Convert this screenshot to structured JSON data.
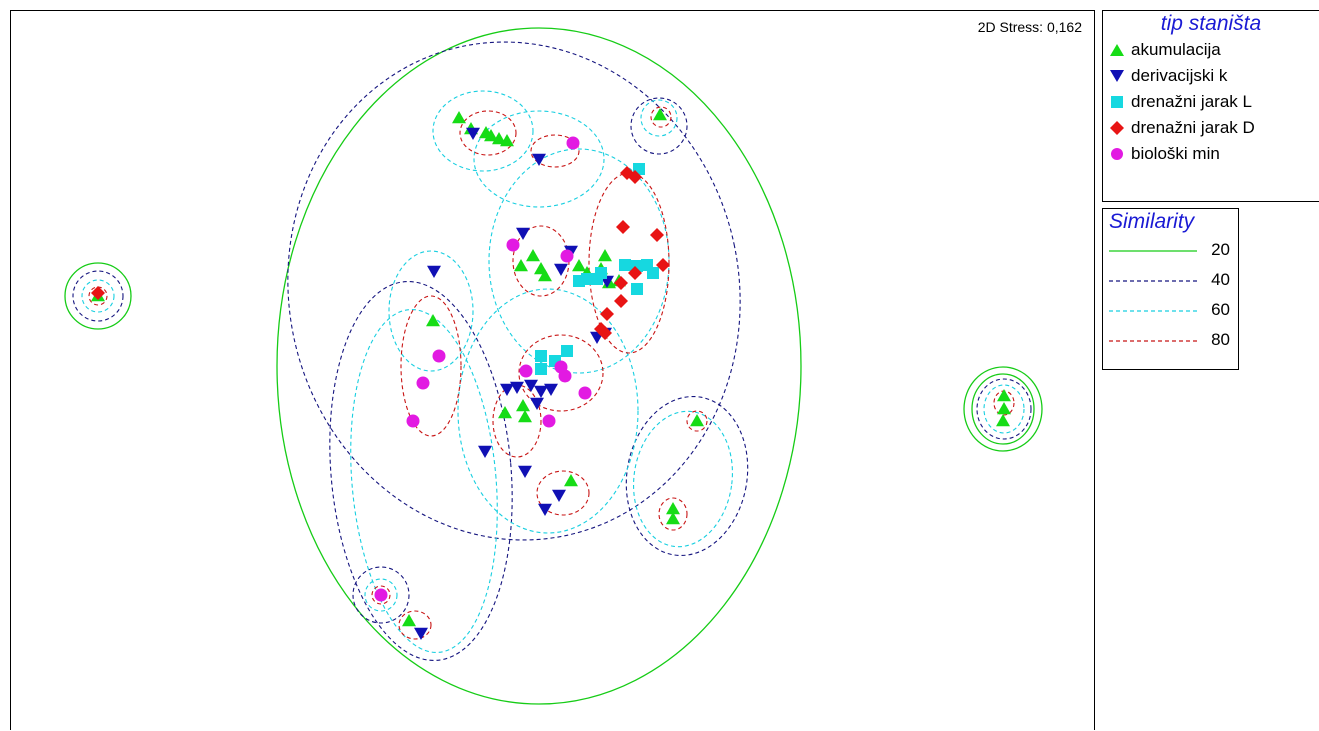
{
  "chart_data": {
    "type": "scatter",
    "title": "",
    "stress_text": "2D Stress: 0,162",
    "legend_title": "tip staništa",
    "similarity_title": "Similarity",
    "xlim": [
      0,
      1085
    ],
    "ylim": [
      0,
      720
    ],
    "series": [
      {
        "name": "akumulacija",
        "marker": "triangle-up",
        "color": "#16dc16",
        "points": [
          [
            448,
            107
          ],
          [
            460,
            118
          ],
          [
            475,
            122
          ],
          [
            480,
            125
          ],
          [
            488,
            128
          ],
          [
            496,
            130
          ],
          [
            649,
            104
          ],
          [
            522,
            245
          ],
          [
            510,
            255
          ],
          [
            530,
            258
          ],
          [
            534,
            265
          ],
          [
            568,
            255
          ],
          [
            576,
            262
          ],
          [
            590,
            258
          ],
          [
            598,
            272
          ],
          [
            594,
            245
          ],
          [
            608,
            270
          ],
          [
            422,
            310
          ],
          [
            494,
            402
          ],
          [
            512,
            395
          ],
          [
            514,
            406
          ],
          [
            560,
            470
          ],
          [
            686,
            410
          ],
          [
            662,
            498
          ],
          [
            662,
            508
          ],
          [
            398,
            610
          ],
          [
            993,
            385
          ],
          [
            993,
            398
          ],
          [
            992,
            410
          ],
          [
            87,
            285
          ]
        ]
      },
      {
        "name": "derivacijski k",
        "marker": "triangle-down",
        "color": "#1010b4",
        "points": [
          [
            462,
            122
          ],
          [
            528,
            148
          ],
          [
            512,
            222
          ],
          [
            560,
            240
          ],
          [
            550,
            258
          ],
          [
            596,
            270
          ],
          [
            423,
            260
          ],
          [
            586,
            326
          ],
          [
            594,
            322
          ],
          [
            496,
            378
          ],
          [
            506,
            376
          ],
          [
            520,
            374
          ],
          [
            530,
            380
          ],
          [
            540,
            378
          ],
          [
            526,
            392
          ],
          [
            474,
            440
          ],
          [
            514,
            460
          ],
          [
            534,
            498
          ],
          [
            548,
            484
          ],
          [
            410,
            622
          ]
        ]
      },
      {
        "name": "drenažni jarak L",
        "marker": "square",
        "color": "#16d8e0",
        "points": [
          [
            628,
            158
          ],
          [
            568,
            270
          ],
          [
            576,
            268
          ],
          [
            590,
            262
          ],
          [
            586,
            268
          ],
          [
            614,
            254
          ],
          [
            626,
            255
          ],
          [
            636,
            254
          ],
          [
            642,
            262
          ],
          [
            626,
            278
          ],
          [
            530,
            345
          ],
          [
            530,
            358
          ],
          [
            544,
            350
          ],
          [
            556,
            340
          ]
        ]
      },
      {
        "name": "drenažni jarak D",
        "marker": "diamond",
        "color": "#e81414",
        "points": [
          [
            616,
            162
          ],
          [
            624,
            166
          ],
          [
            612,
            216
          ],
          [
            646,
            224
          ],
          [
            610,
            272
          ],
          [
            624,
            262
          ],
          [
            652,
            254
          ],
          [
            610,
            290
          ],
          [
            596,
            303
          ],
          [
            590,
            318
          ],
          [
            594,
            322
          ],
          [
            87,
            282
          ]
        ]
      },
      {
        "name": "biološki min",
        "marker": "circle",
        "color": "#e21ae2",
        "points": [
          [
            562,
            132
          ],
          [
            502,
            234
          ],
          [
            556,
            245
          ],
          [
            428,
            345
          ],
          [
            412,
            372
          ],
          [
            402,
            410
          ],
          [
            515,
            360
          ],
          [
            550,
            356
          ],
          [
            554,
            365
          ],
          [
            574,
            382
          ],
          [
            538,
            410
          ],
          [
            370,
            584
          ]
        ]
      }
    ],
    "similarity": [
      {
        "label": "20",
        "color": "#16cc16",
        "dash": "solid"
      },
      {
        "label": "40",
        "color": "#15157f",
        "dash": "dashed"
      },
      {
        "label": "60",
        "color": "#18cfe0",
        "dash": "dashed"
      },
      {
        "label": "80",
        "color": "#c81414",
        "dash": "dashed"
      }
    ]
  },
  "contours": [
    {
      "level": "20",
      "cx": 528,
      "cy": 355,
      "rx": 262,
      "ry": 338
    },
    {
      "level": "20",
      "cx": 87,
      "cy": 285,
      "rx": 33,
      "ry": 33
    },
    {
      "level": "20",
      "cx": 992,
      "cy": 398,
      "rx": 39,
      "ry": 42
    },
    {
      "level": "20",
      "cx": 992,
      "cy": 398,
      "rx": 31,
      "ry": 35
    },
    {
      "level": "40",
      "cx": 503,
      "cy": 280,
      "rx": 225,
      "ry": 250,
      "rot": -12
    },
    {
      "level": "40",
      "cx": 410,
      "cy": 460,
      "rx": 90,
      "ry": 190,
      "rot": -5
    },
    {
      "level": "40",
      "cx": 648,
      "cy": 115,
      "rx": 28,
      "ry": 28
    },
    {
      "level": "40",
      "cx": 87,
      "cy": 285,
      "rx": 25,
      "ry": 25
    },
    {
      "level": "40",
      "cx": 676,
      "cy": 465,
      "rx": 60,
      "ry": 80,
      "rot": 10
    },
    {
      "level": "40",
      "cx": 370,
      "cy": 584,
      "rx": 28,
      "ry": 28
    },
    {
      "level": "40",
      "cx": 993,
      "cy": 398,
      "rx": 27,
      "ry": 30
    },
    {
      "level": "60",
      "cx": 472,
      "cy": 120,
      "rx": 50,
      "ry": 40
    },
    {
      "level": "60",
      "cx": 528,
      "cy": 148,
      "rx": 65,
      "ry": 48
    },
    {
      "level": "60",
      "cx": 568,
      "cy": 250,
      "rx": 90,
      "ry": 112
    },
    {
      "level": "60",
      "cx": 537,
      "cy": 400,
      "rx": 90,
      "ry": 122
    },
    {
      "level": "60",
      "cx": 420,
      "cy": 300,
      "rx": 42,
      "ry": 60
    },
    {
      "level": "60",
      "cx": 413,
      "cy": 470,
      "rx": 72,
      "ry": 172,
      "rot": -5
    },
    {
      "level": "60",
      "cx": 648,
      "cy": 107,
      "rx": 18,
      "ry": 18
    },
    {
      "level": "60",
      "cx": 87,
      "cy": 285,
      "rx": 16,
      "ry": 16
    },
    {
      "level": "60",
      "cx": 672,
      "cy": 468,
      "rx": 49,
      "ry": 68,
      "rot": 8
    },
    {
      "level": "60",
      "cx": 370,
      "cy": 584,
      "rx": 16,
      "ry": 16
    },
    {
      "level": "60",
      "cx": 993,
      "cy": 398,
      "rx": 20,
      "ry": 24
    },
    {
      "level": "80",
      "cx": 477,
      "cy": 122,
      "rx": 28,
      "ry": 22
    },
    {
      "level": "80",
      "cx": 544,
      "cy": 140,
      "rx": 24,
      "ry": 16
    },
    {
      "level": "80",
      "cx": 530,
      "cy": 250,
      "rx": 28,
      "ry": 35
    },
    {
      "level": "80",
      "cx": 618,
      "cy": 252,
      "rx": 40,
      "ry": 90
    },
    {
      "level": "80",
      "cx": 420,
      "cy": 355,
      "rx": 30,
      "ry": 70
    },
    {
      "level": "80",
      "cx": 550,
      "cy": 362,
      "rx": 42,
      "ry": 38
    },
    {
      "level": "80",
      "cx": 506,
      "cy": 410,
      "rx": 24,
      "ry": 36
    },
    {
      "level": "80",
      "cx": 552,
      "cy": 482,
      "rx": 26,
      "ry": 22
    },
    {
      "level": "80",
      "cx": 87,
      "cy": 285,
      "rx": 9,
      "ry": 9
    },
    {
      "level": "80",
      "cx": 686,
      "cy": 410,
      "rx": 10,
      "ry": 10
    },
    {
      "level": "80",
      "cx": 650,
      "cy": 106,
      "rx": 10,
      "ry": 10
    },
    {
      "level": "80",
      "cx": 662,
      "cy": 503,
      "rx": 14,
      "ry": 16
    },
    {
      "level": "80",
      "cx": 370,
      "cy": 584,
      "rx": 9,
      "ry": 9
    },
    {
      "level": "80",
      "cx": 404,
      "cy": 614,
      "rx": 16,
      "ry": 14
    },
    {
      "level": "80",
      "cx": 993,
      "cy": 392,
      "rx": 10,
      "ry": 12
    }
  ]
}
